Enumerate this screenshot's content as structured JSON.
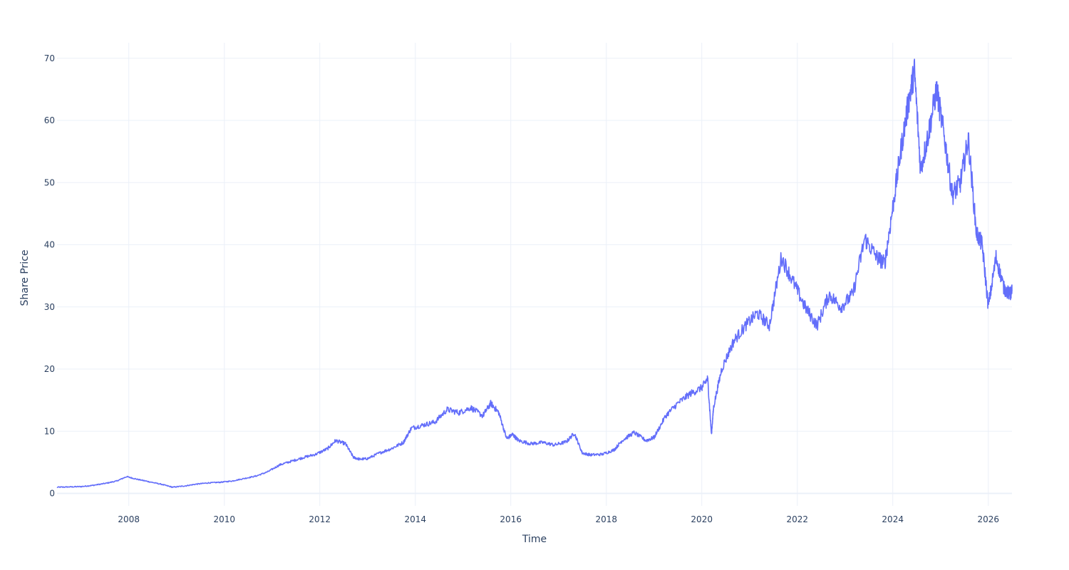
{
  "chart_data": {
    "type": "line",
    "title": "",
    "xlabel": "Time",
    "ylabel": "Share Price",
    "x_range": [
      "2006-07-01",
      "2026-07-01"
    ],
    "ylim": [
      -2,
      72.5
    ],
    "x_ticks": [
      "2008",
      "2010",
      "2012",
      "2014",
      "2016",
      "2018",
      "2020",
      "2022",
      "2024",
      "2026"
    ],
    "y_ticks": [
      0,
      10,
      20,
      30,
      40,
      50,
      60,
      70
    ],
    "grid": true,
    "legend": "none",
    "series": [
      {
        "color": "#636efa",
        "x": [
          "2006-07-01",
          "2006-10-01",
          "2007-01-01",
          "2007-04-01",
          "2007-07-01",
          "2007-10-01",
          "2007-12-15",
          "2008-03-01",
          "2008-06-01",
          "2008-09-01",
          "2008-12-01",
          "2009-03-01",
          "2009-06-01",
          "2009-09-01",
          "2009-12-01",
          "2010-03-01",
          "2010-06-01",
          "2010-09-01",
          "2010-12-01",
          "2011-03-01",
          "2011-06-01",
          "2011-09-01",
          "2011-12-01",
          "2012-03-01",
          "2012-05-01",
          "2012-07-15",
          "2012-09-15",
          "2012-11-01",
          "2013-01-01",
          "2013-04-01",
          "2013-07-01",
          "2013-10-01",
          "2013-12-01",
          "2014-03-01",
          "2014-06-01",
          "2014-09-01",
          "2014-12-01",
          "2015-03-01",
          "2015-06-01",
          "2015-08-01",
          "2015-10-01",
          "2015-12-01",
          "2016-01-15",
          "2016-03-01",
          "2016-06-01",
          "2016-09-01",
          "2016-12-01",
          "2017-03-01",
          "2017-05-01",
          "2017-07-01",
          "2017-09-01",
          "2017-12-01",
          "2018-03-01",
          "2018-05-01",
          "2018-08-01",
          "2018-11-01",
          "2019-01-01",
          "2019-04-01",
          "2019-07-01",
          "2019-10-01",
          "2020-01-01",
          "2020-02-15",
          "2020-03-15",
          "2020-04-01",
          "2020-06-01",
          "2020-09-01",
          "2020-12-01",
          "2021-03-01",
          "2021-06-01",
          "2021-09-01",
          "2021-12-01",
          "2022-03-01",
          "2022-06-01",
          "2022-09-01",
          "2022-12-01",
          "2023-03-01",
          "2023-06-01",
          "2023-09-01",
          "2023-11-01",
          "2024-01-01",
          "2024-03-01",
          "2024-05-01",
          "2024-06-15",
          "2024-08-01",
          "2024-10-01",
          "2024-12-01",
          "2025-02-01",
          "2025-04-01",
          "2025-06-01",
          "2025-08-01",
          "2025-10-01",
          "2025-11-15",
          "2026-01-01",
          "2026-03-01",
          "2026-05-01",
          "2026-06-15",
          "2026-07-01"
        ],
        "y": [
          1.0,
          1.05,
          1.1,
          1.3,
          1.6,
          2.0,
          2.7,
          2.3,
          1.9,
          1.5,
          1.0,
          1.2,
          1.5,
          1.7,
          1.8,
          2.0,
          2.4,
          2.8,
          3.5,
          4.6,
          5.2,
          5.8,
          6.3,
          7.2,
          8.5,
          8.0,
          5.8,
          5.5,
          5.6,
          6.5,
          7.2,
          8.2,
          10.5,
          11.0,
          11.5,
          13.5,
          13.0,
          13.8,
          12.5,
          14.5,
          13.0,
          8.8,
          9.5,
          8.5,
          8.0,
          8.2,
          7.8,
          8.3,
          9.7,
          6.5,
          6.2,
          6.3,
          7.0,
          8.5,
          9.8,
          8.5,
          9.0,
          12.5,
          14.5,
          16.0,
          17.0,
          18.5,
          9.5,
          14.0,
          20.0,
          24.5,
          27.0,
          29.0,
          27.0,
          38.0,
          34.0,
          30.0,
          27.0,
          32.0,
          30.0,
          32.0,
          41.0,
          38.0,
          37.0,
          46.0,
          55.0,
          63.0,
          68.0,
          52.0,
          58.0,
          65.0,
          57.0,
          48.0,
          50.0,
          57.0,
          42.0,
          40.0,
          30.0,
          38.0,
          33.0,
          32.0,
          32.5
        ]
      }
    ]
  }
}
